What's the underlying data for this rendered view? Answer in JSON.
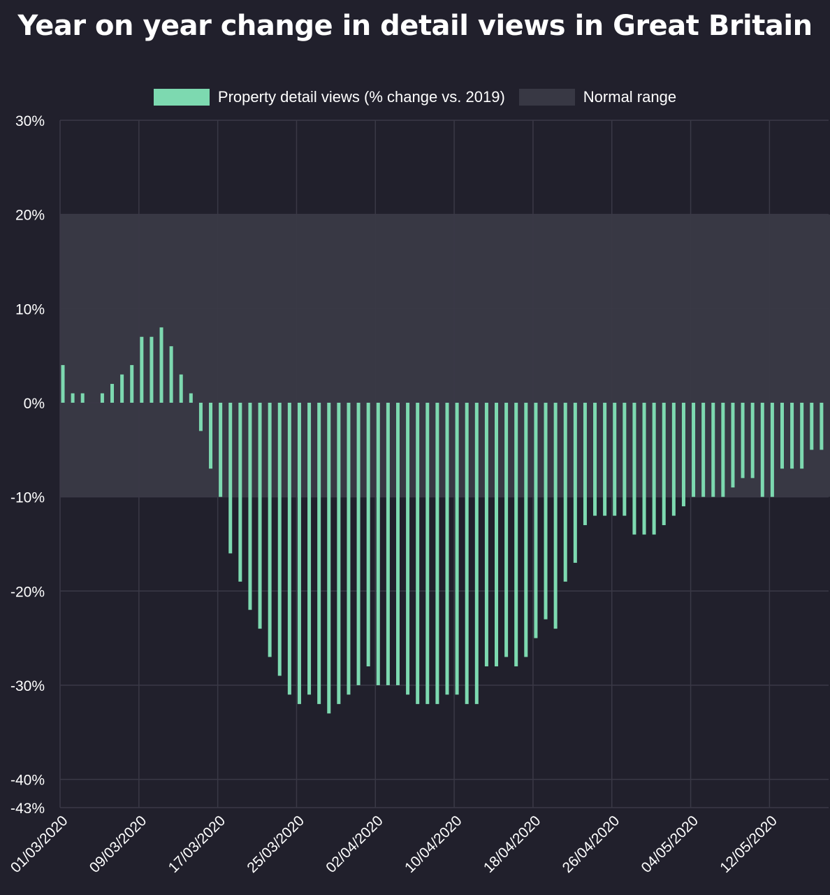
{
  "chart_data": {
    "type": "bar",
    "title": "Year on year change in detail views in Great Britain",
    "legend": {
      "placement": "top-center",
      "entries": [
        {
          "label": "Property detail views (% change vs. 2019)",
          "color": "#7dd9b0"
        },
        {
          "label": "Normal range",
          "color": "#383844"
        }
      ]
    },
    "y_axis": {
      "min": -43,
      "max": 30,
      "ticks": [
        30,
        20,
        10,
        0,
        -10,
        -20,
        -30,
        -40,
        -43
      ],
      "tick_labels": [
        "30%",
        "20%",
        "10%",
        "0%",
        "-10%",
        "-20%",
        "-30%",
        "-40%",
        "-43%"
      ]
    },
    "normal_range": [
      -10,
      20
    ],
    "x_axis": {
      "start_date": "01/03/2020",
      "tick_labels": [
        "01/03/2020",
        "09/03/2020",
        "17/03/2020",
        "25/03/2020",
        "02/04/2020",
        "10/04/2020",
        "18/04/2020",
        "26/04/2020",
        "04/05/2020",
        "12/05/2020"
      ],
      "tick_every": 8
    },
    "grid": true,
    "series": [
      {
        "name": "Property detail views (% change vs. 2019)",
        "color": "#7dd9b0",
        "values": [
          4,
          1,
          1,
          0,
          1,
          2,
          3,
          4,
          7,
          7,
          8,
          6,
          3,
          1,
          -3,
          -7,
          -10,
          -16,
          -19,
          -22,
          -24,
          -27,
          -29,
          -31,
          -32,
          -31,
          -32,
          -33,
          -32,
          -31,
          -30,
          -28,
          -30,
          -30,
          -30,
          -31,
          -32,
          -32,
          -32,
          -31,
          -31,
          -32,
          -32,
          -28,
          -28,
          -27,
          -28,
          -27,
          -25,
          -23,
          -24,
          -19,
          -17,
          -13,
          -12,
          -12,
          -12,
          -12,
          -14,
          -14,
          -14,
          -13,
          -12,
          -11,
          -10,
          -10,
          -10,
          -10,
          -9,
          -8,
          -8,
          -10,
          -10,
          -7,
          -7,
          -7,
          -5,
          -5
        ]
      }
    ]
  },
  "colors": {
    "background": "#21202c",
    "grid": "#3a3946",
    "normal_range": "#383844",
    "bar": "#7dd9b0"
  }
}
